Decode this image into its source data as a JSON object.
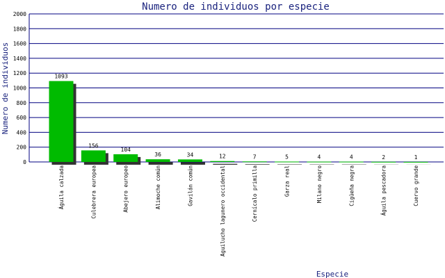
{
  "colors": {
    "bar": "#00bb00",
    "bar_shadow": "#333333",
    "grid": "#000080",
    "title": "#1a237e"
  },
  "chart_data": {
    "type": "bar",
    "title": "Numero de individuos por especie",
    "xlabel": "Especie",
    "ylabel": "Numero de individuos",
    "ylim": [
      0,
      2000
    ],
    "yticks": [
      0,
      200,
      400,
      600,
      800,
      1000,
      1200,
      1400,
      1600,
      1800,
      2000
    ],
    "grid": true,
    "categories": [
      "Águila calzada",
      "Culebrera europea",
      "Abejero europeo",
      "Alimoche común",
      "Gavilán común",
      "Aguilucho lagunero occidental",
      "Cernícalo primilla",
      "Garza real",
      "Milano negro",
      "Cigüeña negra",
      "Águila pescadora",
      "Cuervo grande"
    ],
    "values": [
      1093,
      156,
      104,
      36,
      34,
      12,
      7,
      5,
      4,
      4,
      2,
      1
    ]
  }
}
